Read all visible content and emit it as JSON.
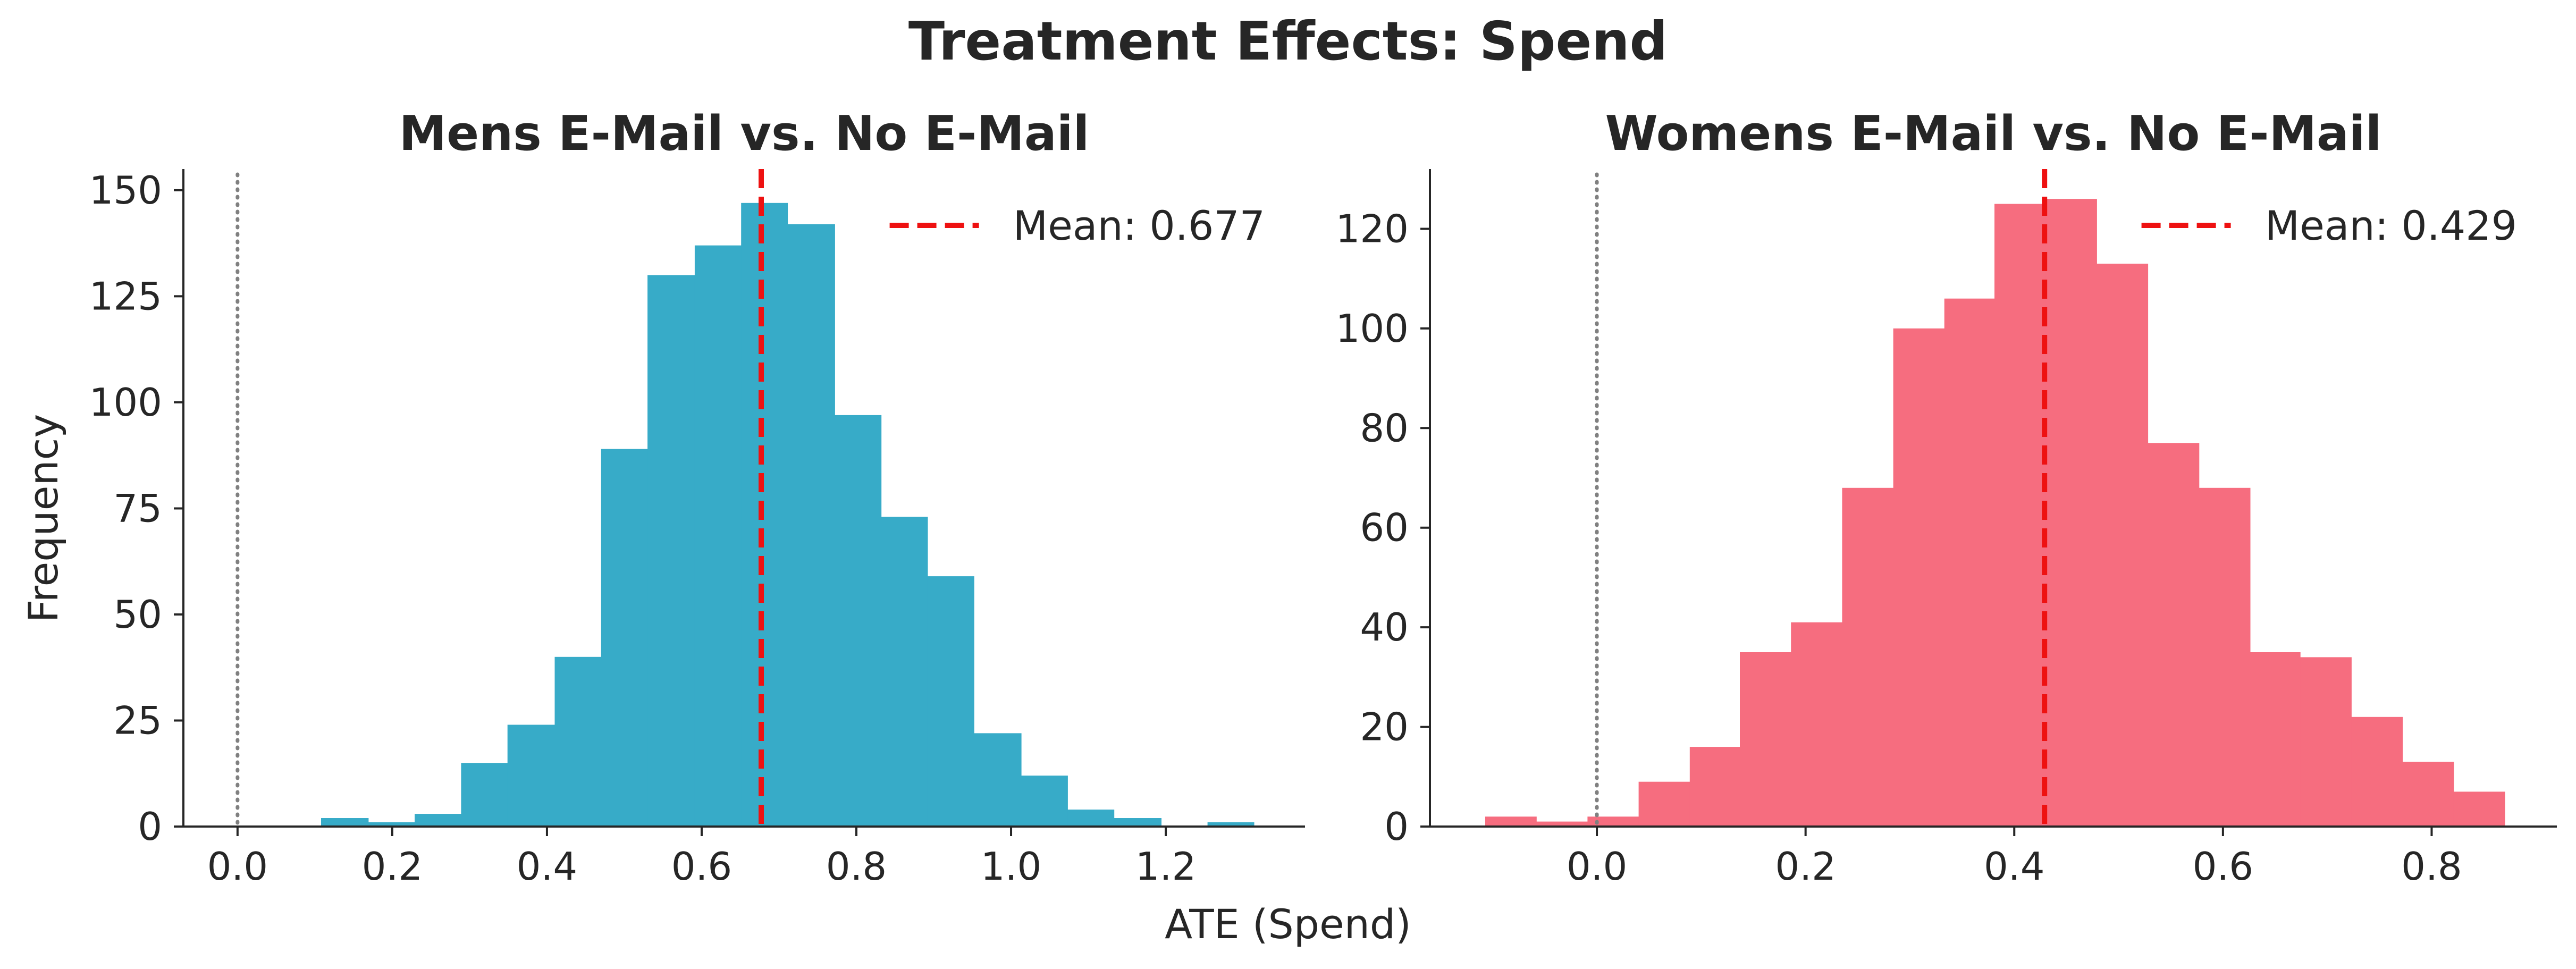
{
  "figure": {
    "title": "Treatment Effects: Spend",
    "xlabel": "ATE (Spend)",
    "ylabel": "Frequency"
  },
  "chart_data": [
    {
      "type": "bar",
      "subtype": "histogram",
      "title": "Mens E-Mail vs. No E-Mail",
      "color": "#37abc8",
      "xlabel": "ATE (Spend)",
      "ylabel": "Frequency",
      "xlim": [
        -0.07,
        1.38
      ],
      "ylim": [
        0,
        155
      ],
      "xticks": [
        0.0,
        0.2,
        0.4,
        0.6,
        0.8,
        1.0,
        1.2
      ],
      "xtick_labels": [
        "0.0",
        "0.2",
        "0.4",
        "0.6",
        "0.8",
        "1.0",
        "1.2"
      ],
      "yticks": [
        0,
        25,
        50,
        75,
        100,
        125,
        150
      ],
      "ytick_labels": [
        "0",
        "25",
        "50",
        "75",
        "100",
        "125",
        "150"
      ],
      "bins": [
        {
          "x0": 0.108,
          "x1": 0.169,
          "count": 2
        },
        {
          "x0": 0.169,
          "x1": 0.229,
          "count": 1
        },
        {
          "x0": 0.229,
          "x1": 0.289,
          "count": 3
        },
        {
          "x0": 0.289,
          "x1": 0.349,
          "count": 15
        },
        {
          "x0": 0.349,
          "x1": 0.41,
          "count": 24
        },
        {
          "x0": 0.41,
          "x1": 0.47,
          "count": 40
        },
        {
          "x0": 0.47,
          "x1": 0.53,
          "count": 89
        },
        {
          "x0": 0.53,
          "x1": 0.591,
          "count": 130
        },
        {
          "x0": 0.591,
          "x1": 0.651,
          "count": 137
        },
        {
          "x0": 0.651,
          "x1": 0.711,
          "count": 147
        },
        {
          "x0": 0.711,
          "x1": 0.772,
          "count": 142
        },
        {
          "x0": 0.772,
          "x1": 0.832,
          "count": 97
        },
        {
          "x0": 0.832,
          "x1": 0.892,
          "count": 73
        },
        {
          "x0": 0.892,
          "x1": 0.952,
          "count": 59
        },
        {
          "x0": 0.952,
          "x1": 1.013,
          "count": 22
        },
        {
          "x0": 1.013,
          "x1": 1.073,
          "count": 12
        },
        {
          "x0": 1.073,
          "x1": 1.133,
          "count": 4
        },
        {
          "x0": 1.133,
          "x1": 1.194,
          "count": 2
        },
        {
          "x0": 1.194,
          "x1": 1.254,
          "count": 0
        },
        {
          "x0": 1.254,
          "x1": 1.314,
          "count": 1
        }
      ],
      "mean": 0.677,
      "mean_label": "Mean: 0.677",
      "zero_line": 0.0,
      "legend_position": "top-right",
      "grid": false
    },
    {
      "type": "bar",
      "subtype": "histogram",
      "title": "Womens E-Mail vs. No E-Mail",
      "color": "#f66d7f",
      "xlabel": "ATE (Spend)",
      "ylabel": "Frequency",
      "xlim": [
        -0.16,
        0.92
      ],
      "ylim": [
        0,
        132
      ],
      "xticks": [
        0.0,
        0.2,
        0.4,
        0.6,
        0.8
      ],
      "xtick_labels": [
        "0.0",
        "0.2",
        "0.4",
        "0.6",
        "0.8"
      ],
      "yticks": [
        0,
        20,
        40,
        60,
        80,
        100,
        120
      ],
      "ytick_labels": [
        "0",
        "20",
        "40",
        "60",
        "80",
        "100",
        "120"
      ],
      "bins": [
        {
          "x0": -0.107,
          "x1": -0.058,
          "count": 2
        },
        {
          "x0": -0.058,
          "x1": -0.009,
          "count": 1
        },
        {
          "x0": -0.009,
          "x1": 0.04,
          "count": 2
        },
        {
          "x0": 0.04,
          "x1": 0.089,
          "count": 9
        },
        {
          "x0": 0.089,
          "x1": 0.137,
          "count": 16
        },
        {
          "x0": 0.137,
          "x1": 0.186,
          "count": 35
        },
        {
          "x0": 0.186,
          "x1": 0.235,
          "count": 41
        },
        {
          "x0": 0.235,
          "x1": 0.284,
          "count": 68
        },
        {
          "x0": 0.284,
          "x1": 0.333,
          "count": 100
        },
        {
          "x0": 0.333,
          "x1": 0.381,
          "count": 106
        },
        {
          "x0": 0.381,
          "x1": 0.43,
          "count": 125
        },
        {
          "x0": 0.43,
          "x1": 0.479,
          "count": 126
        },
        {
          "x0": 0.479,
          "x1": 0.528,
          "count": 113
        },
        {
          "x0": 0.528,
          "x1": 0.577,
          "count": 77
        },
        {
          "x0": 0.577,
          "x1": 0.626,
          "count": 68
        },
        {
          "x0": 0.626,
          "x1": 0.674,
          "count": 35
        },
        {
          "x0": 0.674,
          "x1": 0.723,
          "count": 34
        },
        {
          "x0": 0.723,
          "x1": 0.772,
          "count": 22
        },
        {
          "x0": 0.772,
          "x1": 0.821,
          "count": 13
        },
        {
          "x0": 0.821,
          "x1": 0.87,
          "count": 7
        }
      ],
      "mean": 0.429,
      "mean_label": "Mean: 0.429",
      "zero_line": 0.0,
      "legend_position": "top-right",
      "grid": false
    }
  ]
}
